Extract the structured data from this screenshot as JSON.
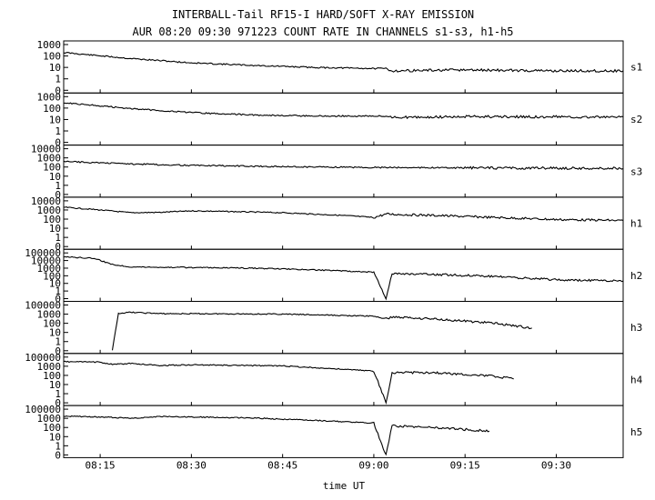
{
  "title": "INTERBALL-Tail RF15-I HARD/SOFT X-RAY EMISSION",
  "subtitle": "AUR 08:20 09:30 971223  COUNT RATE IN CHANNELS s1-s3, h1-h5",
  "xlabel": "time UT",
  "x_ticks": [
    "08:15",
    "08:30",
    "08:45",
    "09:00",
    "09:15",
    "09:30"
  ],
  "chart_data": {
    "type": "line",
    "title": "INTERBALL-Tail RF15-I HARD/SOFT X-RAY EMISSION",
    "subtitle": "AUR 08:20 09:30 971223  COUNT RATE IN CHANNELS s1-s3, h1-h5",
    "xlabel": "time UT",
    "xlim": [
      "08:09",
      "09:41"
    ],
    "x_ticks": [
      "08:15",
      "08:30",
      "08:45",
      "09:00",
      "09:15",
      "09:30"
    ],
    "y_scale": "log",
    "grid": false,
    "panels": [
      {
        "name": "s1",
        "y_tick_labels": [
          "1000",
          "100",
          "10",
          "1",
          "0"
        ],
        "series": [
          {
            "name": "s1",
            "x": [
              "08:09",
              "08:20",
              "08:30",
              "08:40",
              "08:50",
              "09:00",
              "09:02",
              "09:03",
              "09:15",
              "09:30",
              "09:41"
            ],
            "y": [
              200,
              60,
              25,
              15,
              10,
              8,
              8,
              5,
              6,
              5,
              5
            ]
          }
        ]
      },
      {
        "name": "s2",
        "y_tick_labels": [
          "1000",
          "100",
          "10",
          "1",
          "0"
        ],
        "series": [
          {
            "name": "s2",
            "x": [
              "08:09",
              "08:20",
              "08:30",
              "08:40",
              "08:50",
              "09:00",
              "09:02",
              "09:03",
              "09:15",
              "09:30",
              "09:41"
            ],
            "y": [
              300,
              90,
              40,
              25,
              20,
              20,
              20,
              15,
              18,
              17,
              17
            ]
          }
        ]
      },
      {
        "name": "s3",
        "y_tick_labels": [
          "10000",
          "1000",
          "100",
          "10",
          "1",
          "0"
        ],
        "series": [
          {
            "name": "s3",
            "x": [
              "08:09",
              "08:20",
              "08:30",
              "08:45",
              "09:00",
              "09:15",
              "09:30",
              "09:41"
            ],
            "y": [
              400,
              220,
              150,
              110,
              90,
              80,
              75,
              70
            ]
          }
        ]
      },
      {
        "name": "h1",
        "y_tick_labels": [
          "10000",
          "1000",
          "100",
          "10",
          "1",
          "0"
        ],
        "series": [
          {
            "name": "h1",
            "x": [
              "08:09",
              "08:15",
              "08:20",
              "08:25",
              "08:30",
              "08:35",
              "08:45",
              "08:55",
              "09:00",
              "09:02",
              "09:10",
              "09:20",
              "09:30",
              "09:41"
            ],
            "y": [
              2000,
              1000,
              500,
              550,
              800,
              700,
              500,
              250,
              150,
              350,
              250,
              150,
              90,
              70
            ]
          }
        ]
      },
      {
        "name": "h2",
        "y_tick_labels": [
          "100000",
          "10000",
          "1000",
          "100",
          "10",
          "1",
          "0"
        ],
        "series": [
          {
            "name": "h2",
            "x": [
              "08:09",
              "08:14",
              "08:17",
              "08:20",
              "08:30",
              "08:40",
              "08:50",
              "09:00",
              "09:02",
              "09:03",
              "09:10",
              "09:20",
              "09:30",
              "09:41"
            ],
            "y": [
              30000,
              20000,
              3000,
              1500,
              1200,
              1000,
              600,
              300,
              0,
              200,
              150,
              80,
              30,
              20
            ]
          }
        ]
      },
      {
        "name": "h3",
        "y_tick_labels": [
          "100000",
          "1000",
          "100",
          "10",
          "1",
          "0"
        ],
        "series": [
          {
            "name": "h3",
            "x": [
              "08:17",
              "08:18",
              "08:20",
              "08:25",
              "08:35",
              "08:45",
              "09:00",
              "09:02",
              "09:03",
              "09:10",
              "09:20",
              "09:26"
            ],
            "y": [
              0,
              1500,
              2500,
              1300,
              1200,
              1000,
              600,
              300,
              500,
              300,
              100,
              30
            ]
          }
        ]
      },
      {
        "name": "h4",
        "y_tick_labels": [
          "100000",
          "1000",
          "100",
          "10",
          "1",
          "0"
        ],
        "series": [
          {
            "name": "h4",
            "x": [
              "08:09",
              "08:15",
              "08:17",
              "08:20",
              "08:25",
              "08:30",
              "08:45",
              "09:00",
              "09:02",
              "09:03",
              "09:10",
              "09:20",
              "09:23"
            ],
            "y": [
              10000,
              8000,
              2500,
              4000,
              1500,
              2000,
              1200,
              300,
              0,
              200,
              200,
              80,
              40
            ]
          }
        ]
      },
      {
        "name": "h5",
        "y_tick_labels": [
          "100000",
          "1000",
          "100",
          "10",
          "1",
          "0"
        ],
        "series": [
          {
            "name": "h5",
            "x": [
              "08:09",
              "08:15",
              "08:20",
              "08:25",
              "08:30",
              "08:40",
              "08:50",
              "09:00",
              "09:02",
              "09:03",
              "09:10",
              "09:19"
            ],
            "y": [
              3000,
              2000,
              1000,
              2500,
              2000,
              1200,
              600,
              300,
              0,
              150,
              100,
              40
            ]
          }
        ]
      }
    ]
  }
}
